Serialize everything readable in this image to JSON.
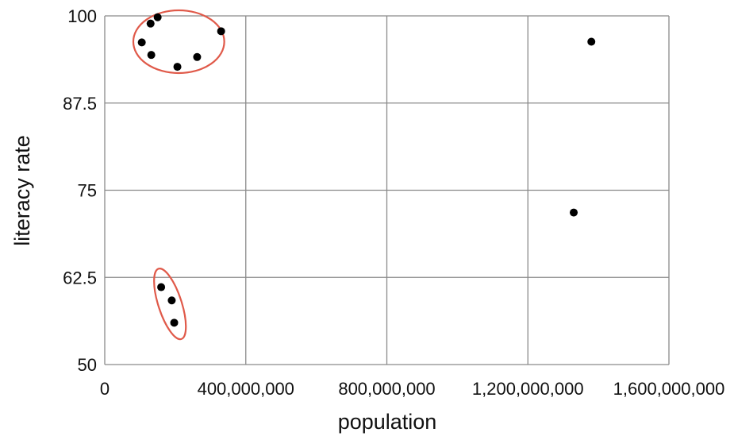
{
  "chart_data": {
    "type": "scatter",
    "title": "",
    "xlabel": "population",
    "ylabel": "literacy rate",
    "xlim": [
      0,
      1600000000
    ],
    "ylim": [
      50,
      100
    ],
    "grid": true,
    "x_ticks": [
      0,
      400000000,
      800000000,
      1200000000,
      1600000000
    ],
    "x_tick_labels": [
      "0",
      "400,000,000",
      "800,000,000",
      "1,200,000,000",
      "1,600,000,000"
    ],
    "y_ticks": [
      50,
      62.5,
      75,
      87.5,
      100
    ],
    "y_tick_labels": [
      "50",
      "62.5",
      "75",
      "87.5",
      "100"
    ],
    "points": [
      {
        "x": 105000000,
        "y": 96.2
      },
      {
        "x": 130000000,
        "y": 98.9
      },
      {
        "x": 150000000,
        "y": 99.8
      },
      {
        "x": 132000000,
        "y": 94.4
      },
      {
        "x": 206000000,
        "y": 92.7
      },
      {
        "x": 262000000,
        "y": 94.1
      },
      {
        "x": 330000000,
        "y": 97.8
      },
      {
        "x": 160000000,
        "y": 61.1
      },
      {
        "x": 190000000,
        "y": 59.2
      },
      {
        "x": 197000000,
        "y": 56.0
      },
      {
        "x": 1330000000,
        "y": 71.8
      },
      {
        "x": 1380000000,
        "y": 96.3
      }
    ],
    "annotations": [
      {
        "type": "ellipse",
        "color": "#e05a4a",
        "cx": 210000000,
        "cy": 96.3,
        "rx": 129000000,
        "ry": 4.5
      },
      {
        "type": "ellipse",
        "color": "#e05a4a",
        "cx": 185000000,
        "cy": 58.7,
        "rx": 33000000,
        "ry": 5.3,
        "rotate": -18
      }
    ],
    "colors": {
      "point": "#000000",
      "grid": "#8a8a8a",
      "highlight": "#e05a4a"
    }
  }
}
